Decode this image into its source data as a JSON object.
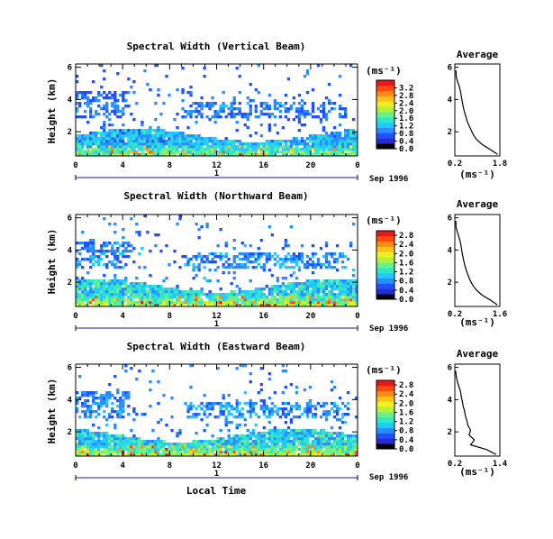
{
  "x_label": "Local Time",
  "unit_label": "(ms⁻¹)",
  "avg_unit_label": "(ms⁻¹)",
  "date_label": "Sep 1996",
  "day_marker": "1",
  "height_label": "Height (km)",
  "avg_title": "Average",
  "colorbar": {
    "colors": [
      "#000000",
      "#2a2ad2",
      "#2050ff",
      "#2a8cff",
      "#22c8ff",
      "#30e8c8",
      "#6af08a",
      "#b4f03a",
      "#eef024",
      "#ffc21a",
      "#ff8a14",
      "#ff4a10",
      "#e61818"
    ]
  },
  "chart_data": [
    {
      "type": "heatmap",
      "title": "Spectral Width (Vertical Beam)",
      "x_ticks": [
        "0",
        "4",
        "8",
        "12",
        "16",
        "20",
        "0"
      ],
      "y_ticks": [
        "2",
        "4",
        "6"
      ],
      "xlim": [
        0,
        24
      ],
      "ylim": [
        0.5,
        6.2
      ],
      "colorbar_ticks": [
        "0.0",
        "0.4",
        "0.8",
        "1.2",
        "1.6",
        "2.0",
        "2.4",
        "2.8",
        "3.2"
      ],
      "colorbar_range": [
        0.0,
        3.6
      ],
      "average": {
        "title": "Average",
        "x_ticks": [
          "0.2",
          "1.8"
        ],
        "xlim": [
          0.2,
          1.8
        ],
        "y_ticks": [
          "2",
          "4",
          "6"
        ],
        "heights": [
          0.6,
          0.9,
          1.2,
          1.5,
          1.8,
          2.1,
          2.4,
          2.7,
          3.0,
          3.3,
          3.6,
          3.9,
          4.2,
          4.5,
          4.8,
          5.1,
          5.4,
          5.8
        ],
        "values": [
          1.72,
          1.45,
          1.18,
          0.98,
          0.86,
          0.78,
          0.7,
          0.63,
          0.58,
          0.53,
          0.49,
          0.46,
          0.43,
          0.4,
          0.36,
          0.3,
          0.25,
          0.24
        ]
      }
    },
    {
      "type": "heatmap",
      "title": "Spectral Width (Northward Beam)",
      "x_ticks": [
        "0",
        "4",
        "8",
        "12",
        "16",
        "20",
        "0"
      ],
      "y_ticks": [
        "2",
        "4",
        "6"
      ],
      "xlim": [
        0,
        24
      ],
      "ylim": [
        0.5,
        6.2
      ],
      "colorbar_ticks": [
        "0.0",
        "0.4",
        "0.8",
        "1.2",
        "1.6",
        "2.0",
        "2.4",
        "2.8"
      ],
      "colorbar_range": [
        0.0,
        3.0
      ],
      "average": {
        "title": "Average",
        "x_ticks": [
          "0.2",
          "1.6"
        ],
        "xlim": [
          0.2,
          1.6
        ],
        "y_ticks": [
          "2",
          "4",
          "6"
        ],
        "heights": [
          0.6,
          0.9,
          1.2,
          1.5,
          1.8,
          2.1,
          2.4,
          2.7,
          3.0,
          3.3,
          3.6,
          3.9,
          4.2,
          4.5,
          4.8,
          5.1,
          5.4,
          5.8
        ],
        "values": [
          1.52,
          1.3,
          1.05,
          0.88,
          0.76,
          0.68,
          0.62,
          0.56,
          0.52,
          0.48,
          0.45,
          0.42,
          0.4,
          0.37,
          0.33,
          0.28,
          0.24,
          0.23
        ]
      }
    },
    {
      "type": "heatmap",
      "title": "Spectral Width (Eastward Beam)",
      "x_ticks": [
        "0",
        "4",
        "8",
        "12",
        "16",
        "20",
        "0"
      ],
      "y_ticks": [
        "2",
        "4",
        "6"
      ],
      "xlim": [
        0,
        24
      ],
      "ylim": [
        0.5,
        6.2
      ],
      "colorbar_ticks": [
        "0.0",
        "0.4",
        "0.8",
        "1.2",
        "1.6",
        "2.0",
        "2.4",
        "2.8"
      ],
      "colorbar_range": [
        0.0,
        3.0
      ],
      "average": {
        "title": "Average",
        "x_ticks": [
          "0.2",
          "1.4"
        ],
        "xlim": [
          0.2,
          1.4
        ],
        "y_ticks": [
          "2",
          "4",
          "6"
        ],
        "heights": [
          0.6,
          0.9,
          1.2,
          1.5,
          1.8,
          2.1,
          2.4,
          2.7,
          3.0,
          3.3,
          3.6,
          3.9,
          4.2,
          4.5,
          4.8,
          5.1,
          5.4,
          5.8
        ],
        "values": [
          1.3,
          1.05,
          0.62,
          0.72,
          0.58,
          0.62,
          0.55,
          0.52,
          0.48,
          0.46,
          0.42,
          0.4,
          0.37,
          0.35,
          0.31,
          0.27,
          0.24,
          0.22
        ]
      }
    }
  ]
}
